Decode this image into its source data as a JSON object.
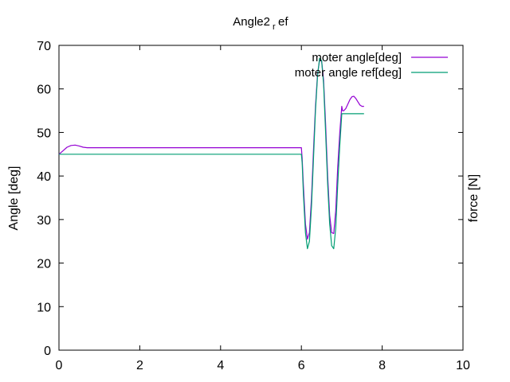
{
  "chart_data": {
    "type": "line",
    "title": "Angle2",
    "title_subscript": "r",
    "title_suffix": "ef",
    "xlabel": "",
    "ylabel": "Angle [deg]",
    "y2label": "force [N]",
    "xlim": [
      0,
      10
    ],
    "ylim": [
      0,
      70
    ],
    "xticks": [
      0,
      2,
      4,
      6,
      8,
      10
    ],
    "yticks": [
      0,
      10,
      20,
      30,
      40,
      50,
      60,
      70
    ],
    "grid": false,
    "legend_position": "top-right",
    "series": [
      {
        "name": "moter angle[deg]",
        "color": "#9400d3",
        "x": [
          0,
          0.1,
          0.2,
          0.3,
          0.4,
          0.5,
          0.6,
          0.7,
          1.0,
          2.0,
          3.0,
          4.0,
          5.0,
          6.0,
          6.02,
          6.05,
          6.1,
          6.15,
          6.2,
          6.25,
          6.3,
          6.35,
          6.4,
          6.45,
          6.5,
          6.55,
          6.6,
          6.65,
          6.7,
          6.75,
          6.8,
          6.85,
          6.9,
          6.95,
          7.0,
          7.02,
          7.05,
          7.1,
          7.15,
          7.2,
          7.25,
          7.3,
          7.35,
          7.4,
          7.45,
          7.5,
          7.55
        ],
        "y": [
          45.0,
          45.8,
          46.6,
          47.0,
          47.1,
          46.9,
          46.6,
          46.5,
          46.5,
          46.5,
          46.5,
          46.5,
          46.5,
          46.5,
          44.0,
          38.0,
          29.0,
          25.5,
          27.0,
          35.0,
          46.0,
          56.0,
          63.5,
          66.5,
          66.5,
          62.0,
          52.0,
          40.0,
          31.0,
          27.0,
          26.8,
          32.0,
          42.0,
          50.0,
          56.0,
          55.0,
          55.0,
          55.5,
          56.5,
          57.5,
          58.2,
          58.3,
          57.8,
          57.0,
          56.3,
          56.0,
          56.0
        ],
        "y_first": 45.0,
        "y_mid": 46.5
      },
      {
        "name": "moter angle ref[deg]",
        "color": "#009e73",
        "x": [
          0,
          1.0,
          2.0,
          3.0,
          4.0,
          5.0,
          6.0,
          6.02,
          6.05,
          6.1,
          6.15,
          6.2,
          6.25,
          6.3,
          6.35,
          6.4,
          6.45,
          6.5,
          6.55,
          6.6,
          6.65,
          6.7,
          6.75,
          6.8,
          6.85,
          6.9,
          6.95,
          7.0,
          7.05,
          7.2,
          7.4,
          7.55
        ],
        "y": [
          45.0,
          45.0,
          45.0,
          45.0,
          45.0,
          45.0,
          45.0,
          43.0,
          36.0,
          27.0,
          23.3,
          25.0,
          33.0,
          44.0,
          55.0,
          63.0,
          67.0,
          66.5,
          61.0,
          50.0,
          38.0,
          29.0,
          24.0,
          23.3,
          28.0,
          38.0,
          47.0,
          54.3,
          54.3,
          54.3,
          54.3,
          54.3
        ]
      }
    ]
  }
}
